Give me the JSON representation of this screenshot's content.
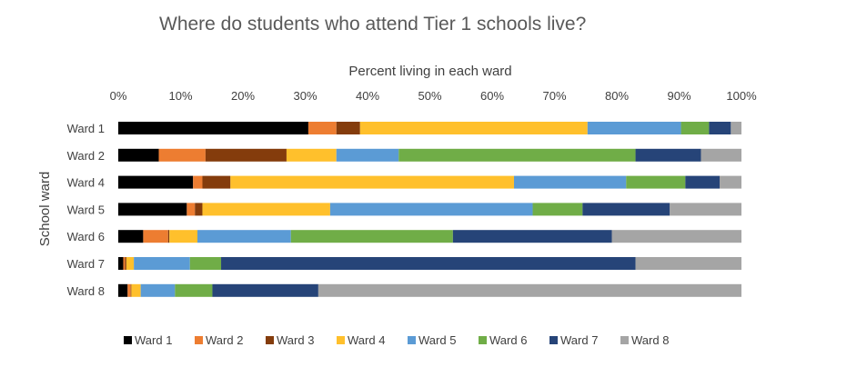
{
  "chart_data": {
    "type": "bar",
    "orientation": "horizontal",
    "stacked": true,
    "title": "Where do students who attend Tier 1 schools live?",
    "xlabel": "Percent living in each ward",
    "ylabel": "School ward",
    "xlim": [
      0,
      100
    ],
    "xticks": [
      "0%",
      "10%",
      "20%",
      "30%",
      "40%",
      "50%",
      "60%",
      "70%",
      "80%",
      "90%",
      "100%"
    ],
    "categories": [
      "Ward 1",
      "Ward 2",
      "Ward 4",
      "Ward 5",
      "Ward 6",
      "Ward 7",
      "Ward 8"
    ],
    "series": [
      {
        "name": "Ward 1",
        "color": "#000000",
        "values": [
          30.5,
          6.5,
          12.0,
          11.0,
          4.0,
          0.8,
          1.5
        ]
      },
      {
        "name": "Ward 2",
        "color": "#ED7D31",
        "values": [
          4.5,
          7.5,
          1.5,
          1.3,
          4.0,
          0.3,
          0.5
        ]
      },
      {
        "name": "Ward 3",
        "color": "#843C0C",
        "values": [
          3.8,
          13.0,
          4.5,
          1.2,
          0.2,
          0.2,
          0.1
        ]
      },
      {
        "name": "Ward 4",
        "color": "#FFC02C",
        "values": [
          36.5,
          8.0,
          45.5,
          20.5,
          4.5,
          1.2,
          1.5
        ]
      },
      {
        "name": "Ward 5",
        "color": "#5B9BD5",
        "values": [
          15.0,
          10.0,
          18.0,
          32.5,
          15.0,
          9.0,
          5.5
        ]
      },
      {
        "name": "Ward 6",
        "color": "#70AD47",
        "values": [
          4.5,
          38.0,
          9.5,
          8.0,
          26.0,
          5.0,
          6.0
        ]
      },
      {
        "name": "Ward 7",
        "color": "#264478",
        "values": [
          3.5,
          10.5,
          5.5,
          14.0,
          25.5,
          66.5,
          17.0
        ]
      },
      {
        "name": "Ward 8",
        "color": "#A5A5A5",
        "values": [
          1.7,
          6.5,
          3.5,
          11.5,
          20.8,
          17.0,
          67.9
        ]
      }
    ],
    "legend_position": "bottom",
    "grid": false
  }
}
